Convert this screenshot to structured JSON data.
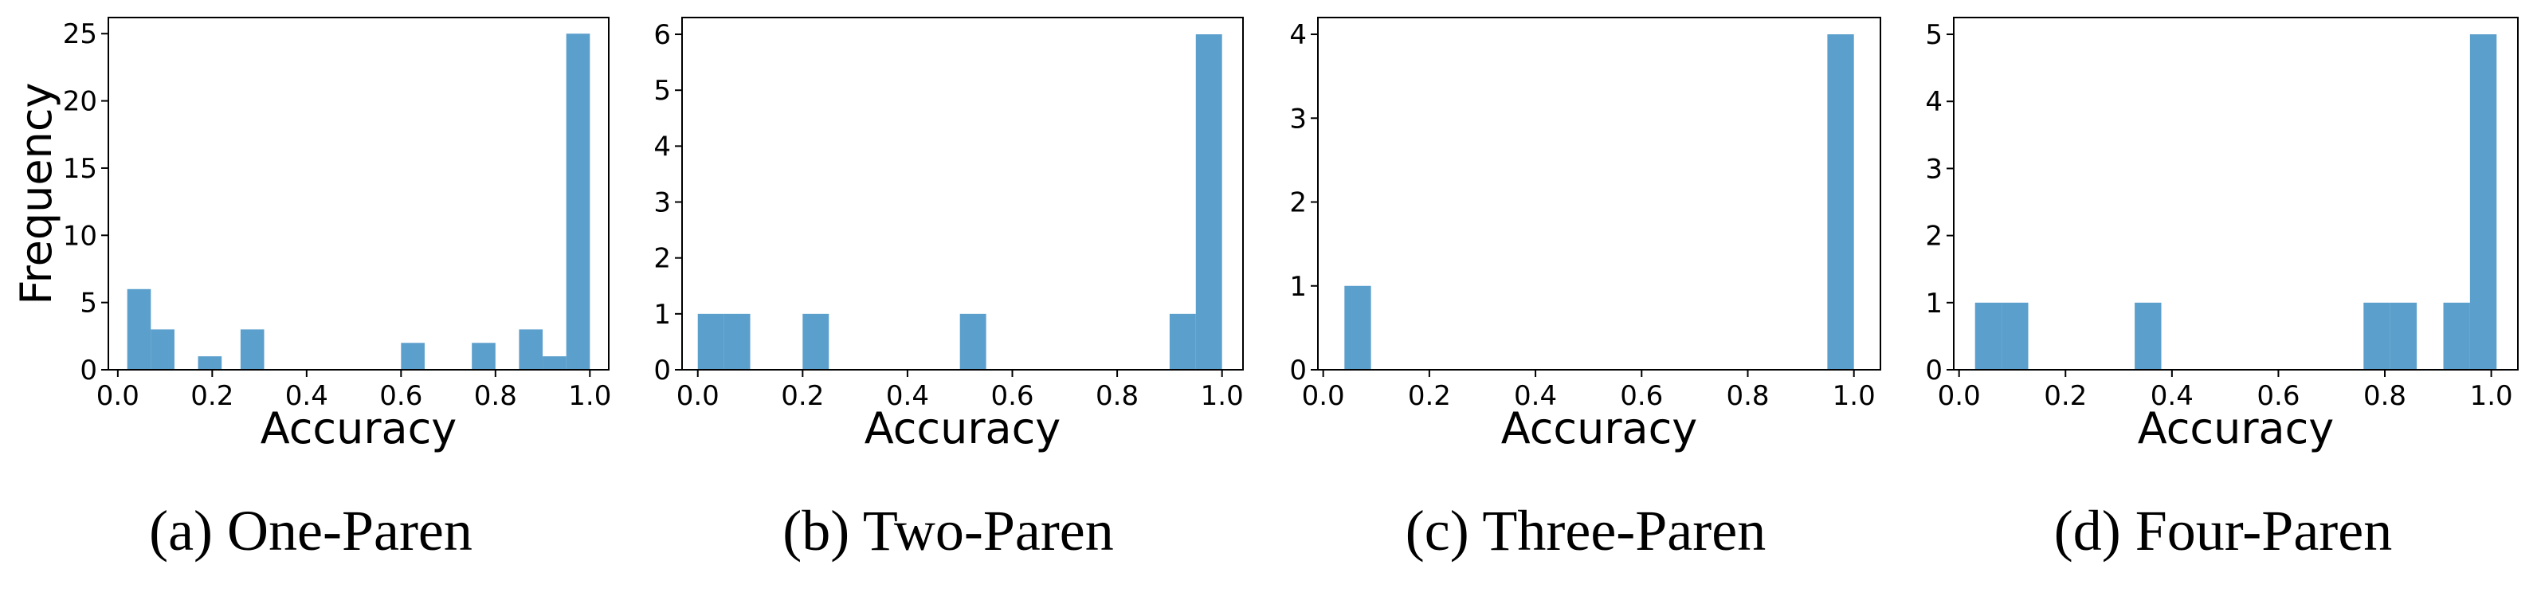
{
  "figure": {
    "bar_color": "#5b9fcc",
    "frame_color": "#000000"
  },
  "chart_data": [
    {
      "type": "bar",
      "caption": "(a) One-Paren",
      "xlabel": "Accuracy",
      "ylabel": "Frequency",
      "xlim": [
        -0.02,
        1.04
      ],
      "ylim": [
        0,
        26.2
      ],
      "xticks": [
        "0.0",
        "0.2",
        "0.4",
        "0.6",
        "0.8",
        "1.0"
      ],
      "yticks": [
        "0",
        "5",
        "10",
        "15",
        "20",
        "25"
      ],
      "bin_width": 0.05,
      "bins": [
        {
          "x0": 0.02,
          "value": 6
        },
        {
          "x0": 0.07,
          "value": 3
        },
        {
          "x0": 0.17,
          "value": 1
        },
        {
          "x0": 0.26,
          "value": 3
        },
        {
          "x0": 0.6,
          "value": 2
        },
        {
          "x0": 0.75,
          "value": 2
        },
        {
          "x0": 0.85,
          "value": 3
        },
        {
          "x0": 0.9,
          "value": 1
        },
        {
          "x0": 0.95,
          "value": 25
        }
      ]
    },
    {
      "type": "bar",
      "caption": "(b) Two-Paren",
      "xlabel": "Accuracy",
      "ylabel": "",
      "xlim": [
        -0.03,
        1.04
      ],
      "ylim": [
        0,
        6.3
      ],
      "xticks": [
        "0.0",
        "0.2",
        "0.4",
        "0.6",
        "0.8",
        "1.0"
      ],
      "yticks": [
        "0",
        "1",
        "2",
        "3",
        "4",
        "5",
        "6"
      ],
      "bin_width": 0.05,
      "bins": [
        {
          "x0": 0.0,
          "value": 1
        },
        {
          "x0": 0.05,
          "value": 1
        },
        {
          "x0": 0.2,
          "value": 1
        },
        {
          "x0": 0.5,
          "value": 1
        },
        {
          "x0": 0.9,
          "value": 1
        },
        {
          "x0": 0.95,
          "value": 6
        }
      ]
    },
    {
      "type": "bar",
      "caption": "(c) Three-Paren",
      "xlabel": "Accuracy",
      "ylabel": "",
      "xlim": [
        -0.01,
        1.05
      ],
      "ylim": [
        0,
        4.2
      ],
      "xticks": [
        "0.0",
        "0.2",
        "0.4",
        "0.6",
        "0.8",
        "1.0"
      ],
      "yticks": [
        "0",
        "1",
        "2",
        "3",
        "4"
      ],
      "bin_width": 0.05,
      "bins": [
        {
          "x0": 0.04,
          "value": 1
        },
        {
          "x0": 0.95,
          "value": 4
        }
      ]
    },
    {
      "type": "bar",
      "caption": "(d) Four-Paren",
      "xlabel": "Accuracy",
      "ylabel": "",
      "xlim": [
        -0.01,
        1.05
      ],
      "ylim": [
        0,
        5.25
      ],
      "xticks": [
        "0.0",
        "0.2",
        "0.4",
        "0.6",
        "0.8",
        "1.0"
      ],
      "yticks": [
        "0",
        "1",
        "2",
        "3",
        "4",
        "5"
      ],
      "bin_width": 0.05,
      "bins": [
        {
          "x0": 0.03,
          "value": 1
        },
        {
          "x0": 0.08,
          "value": 1
        },
        {
          "x0": 0.33,
          "value": 1
        },
        {
          "x0": 0.76,
          "value": 1
        },
        {
          "x0": 0.81,
          "value": 1
        },
        {
          "x0": 0.91,
          "value": 1
        },
        {
          "x0": 0.96,
          "value": 5
        }
      ]
    }
  ]
}
